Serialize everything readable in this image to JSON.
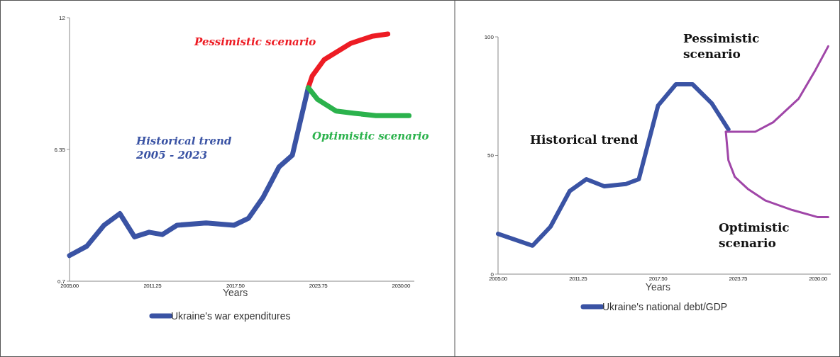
{
  "chart_data": [
    {
      "type": "line",
      "xlabel": "Years",
      "xlim": [
        2005,
        2031
      ],
      "xticks": [
        {
          "value": 2005,
          "label": "2005.00"
        },
        {
          "value": 2011.25,
          "label": "2011.25"
        },
        {
          "value": 2017.5,
          "label": "2017.50"
        },
        {
          "value": 2023.75,
          "label": "2023.75"
        },
        {
          "value": 2030,
          "label": "2030.00"
        }
      ],
      "ylim": [
        0.7,
        12
      ],
      "yticks": [
        0.7,
        6.35,
        12
      ],
      "grid": false,
      "legend": "bottom",
      "annotations": [
        "Historical trend\n2005 - 2023",
        "Pessimistic scenario",
        "Optimistic scenario"
      ],
      "series": [
        {
          "name": "Ukraine's war expenditures",
          "color": "#3a53a4",
          "x": [
            2005,
            2006.3,
            2007.6,
            2008.8,
            2009.9,
            2011,
            2012,
            2013.1,
            2015.3,
            2017.4,
            2018.5,
            2019.6,
            2020.8,
            2021.8,
            2023
          ],
          "values": [
            1.8,
            2.2,
            3.1,
            3.6,
            2.6,
            2.8,
            2.7,
            3.1,
            3.2,
            3.1,
            3.4,
            4.3,
            5.6,
            6.1,
            9
          ]
        },
        {
          "color": "#ed1c24",
          "x": [
            2023,
            2023.3,
            2024.2,
            2026.2,
            2027.8,
            2029
          ],
          "values": [
            9,
            9.5,
            10.2,
            10.9,
            11.2,
            11.3
          ]
        },
        {
          "color": "#2bb24c",
          "x": [
            2023,
            2023.7,
            2025.1,
            2026.5,
            2028.1,
            2030.6
          ],
          "values": [
            9,
            8.5,
            8,
            7.9,
            7.8,
            7.8
          ]
        }
      ]
    },
    {
      "type": "line",
      "xlabel": "Years",
      "xlim": [
        2005,
        2031
      ],
      "xticks": [
        {
          "value": 2005,
          "label": "2005.00"
        },
        {
          "value": 2011.25,
          "label": "2011.25"
        },
        {
          "value": 2017.5,
          "label": "2017.50"
        },
        {
          "value": 2023.75,
          "label": "2023.75"
        },
        {
          "value": 2030,
          "label": "2030.00"
        }
      ],
      "ylim": [
        0,
        100
      ],
      "yticks": [
        0,
        50,
        100
      ],
      "grid": false,
      "legend": "bottom",
      "annotations": [
        "Historical trend",
        "Pessimistic\nscenario",
        "Optimistic\nscenario"
      ],
      "series": [
        {
          "name": "Ukraine's national debt/GDP",
          "color": "#3a53a4",
          "x": [
            2005,
            2007.7,
            2009.1,
            2010.6,
            2011.9,
            2013.3,
            2015,
            2016,
            2017.5,
            2018.9,
            2020.2,
            2021.7,
            2023
          ],
          "values": [
            17,
            12,
            20,
            35,
            40,
            37,
            38,
            40,
            71,
            80,
            80,
            72,
            61
          ]
        },
        {
          "color": "#a046a8",
          "x": [
            2022.8,
            2025.1,
            2026.5,
            2028.5,
            2029.8,
            2030.8
          ],
          "values": [
            60,
            60,
            64,
            74,
            86,
            96
          ]
        },
        {
          "color": "#a046a8",
          "x": [
            2022.8,
            2023,
            2023.5,
            2024.5,
            2025.9,
            2028,
            2030,
            2030.8
          ],
          "values": [
            60,
            48,
            41,
            36,
            31,
            27,
            24,
            24
          ]
        }
      ]
    }
  ]
}
